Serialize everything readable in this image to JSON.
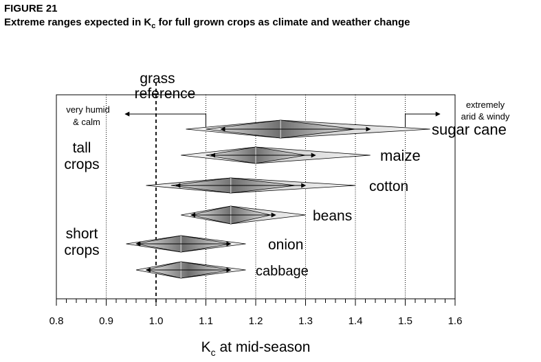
{
  "figure": {
    "label": "FIGURE 21",
    "title_main": "Extreme ranges expected in K",
    "title_sub": "c",
    "title_rest": " for full grown crops as climate and weather change"
  },
  "chart_data": {
    "type": "range-diamond",
    "x_axis": {
      "label_main": "K",
      "label_sub": "c",
      "label_rest": "  at mid-season",
      "xlim": [
        0.8,
        1.6
      ],
      "ticks": [
        0.8,
        0.9,
        1.0,
        1.1,
        1.2,
        1.3,
        1.4,
        1.5,
        1.6
      ],
      "tick_labels": [
        "0.8",
        "0.9",
        "1.0",
        "1.1",
        "1.2",
        "1.3",
        "1.4",
        "1.5",
        "1.6"
      ],
      "minor_step": 0.02
    },
    "gridlines": [
      0.9,
      1.1,
      1.2,
      1.3,
      1.4,
      1.5
    ],
    "reference": {
      "value": 1.0,
      "label_line1": "grass",
      "label_line2": "reference"
    },
    "annotations": {
      "humid_line1": "very humid",
      "humid_line2": "& calm",
      "arid_line1": "extremely",
      "arid_line2": "arid & windy"
    },
    "groups": [
      {
        "line1": "tall",
        "line2": "crops"
      },
      {
        "line1": "short",
        "line2": "crops"
      }
    ],
    "crops": [
      {
        "name": "sugar cane",
        "outer_min": 1.06,
        "outer_max": 1.55,
        "inner_min": 1.1,
        "inner_max": 1.4,
        "typical": 1.25,
        "arrow_min": 1.13,
        "arrow_max": 1.43
      },
      {
        "name": "maize",
        "outer_min": 1.05,
        "outer_max": 1.43,
        "inner_min": 1.1,
        "inner_max": 1.3,
        "typical": 1.2,
        "arrow_min": 1.11,
        "arrow_max": 1.32
      },
      {
        "name": "cotton",
        "outer_min": 0.98,
        "outer_max": 1.4,
        "inner_min": 1.03,
        "inner_max": 1.28,
        "typical": 1.15,
        "arrow_min": 1.04,
        "arrow_max": 1.3
      },
      {
        "name": "beans",
        "outer_min": 1.05,
        "outer_max": 1.3,
        "inner_min": 1.07,
        "inner_max": 1.23,
        "typical": 1.15,
        "arrow_min": 1.07,
        "arrow_max": 1.24
      },
      {
        "name": "onion",
        "outer_min": 0.94,
        "outer_max": 1.18,
        "inner_min": 0.96,
        "inner_max": 1.15,
        "typical": 1.05,
        "arrow_min": 0.96,
        "arrow_max": 1.15
      },
      {
        "name": "cabbage",
        "outer_min": 0.96,
        "outer_max": 1.18,
        "inner_min": 0.98,
        "inner_max": 1.15,
        "typical": 1.05,
        "arrow_min": 0.98,
        "arrow_max": 1.15
      }
    ]
  }
}
